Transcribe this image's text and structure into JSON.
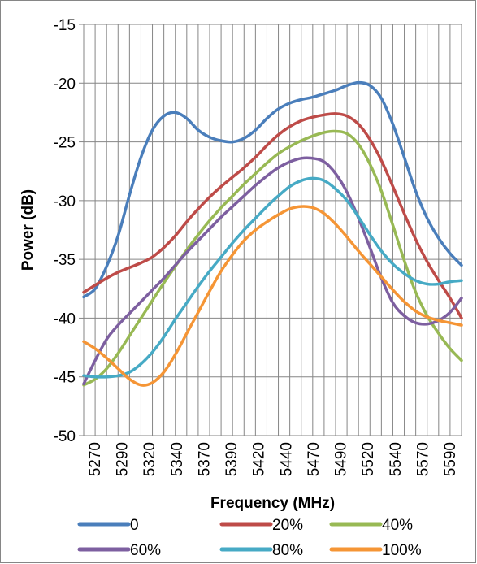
{
  "chart_data": {
    "type": "line",
    "title": "",
    "xlabel": "Frequency (MHz)",
    "ylabel": "Power (dB)",
    "xlim": [
      5270,
      5600
    ],
    "ylim": [
      -50,
      -15
    ],
    "y_ticks": [
      "-50",
      "-45",
      "-40",
      "-35",
      "-30",
      "-25",
      "-20",
      "-15"
    ],
    "x_tick_labels": [
      "5270",
      "5290",
      "5320",
      "5340",
      "5370",
      "5390",
      "5420",
      "5440",
      "5470",
      "5490",
      "5520",
      "5540",
      "5570",
      "5590"
    ],
    "grid": true,
    "legend_position": "bottom",
    "series": [
      {
        "name": "0",
        "color": "#4a7ebb",
        "points": [
          [
            5270,
            -38.2
          ],
          [
            5280,
            -37.5
          ],
          [
            5290,
            -35.6
          ],
          [
            5300,
            -33.0
          ],
          [
            5310,
            -29.5
          ],
          [
            5320,
            -26.3
          ],
          [
            5330,
            -24.0
          ],
          [
            5340,
            -22.8
          ],
          [
            5350,
            -22.5
          ],
          [
            5360,
            -23.0
          ],
          [
            5370,
            -24.0
          ],
          [
            5380,
            -24.6
          ],
          [
            5390,
            -24.9
          ],
          [
            5400,
            -25.0
          ],
          [
            5410,
            -24.7
          ],
          [
            5420,
            -24.0
          ],
          [
            5430,
            -23.0
          ],
          [
            5440,
            -22.2
          ],
          [
            5450,
            -21.7
          ],
          [
            5460,
            -21.4
          ],
          [
            5470,
            -21.2
          ],
          [
            5480,
            -20.9
          ],
          [
            5490,
            -20.6
          ],
          [
            5500,
            -20.2
          ],
          [
            5510,
            -19.95
          ],
          [
            5520,
            -20.2
          ],
          [
            5530,
            -21.3
          ],
          [
            5540,
            -23.5
          ],
          [
            5550,
            -26.3
          ],
          [
            5560,
            -29.2
          ],
          [
            5570,
            -31.5
          ],
          [
            5580,
            -33.2
          ],
          [
            5590,
            -34.5
          ],
          [
            5600,
            -35.5
          ]
        ]
      },
      {
        "name": "20%",
        "color": "#be4b48",
        "points": [
          [
            5270,
            -37.8
          ],
          [
            5280,
            -37.2
          ],
          [
            5290,
            -36.6
          ],
          [
            5300,
            -36.1
          ],
          [
            5310,
            -35.7
          ],
          [
            5320,
            -35.3
          ],
          [
            5330,
            -34.8
          ],
          [
            5340,
            -34.0
          ],
          [
            5350,
            -33.0
          ],
          [
            5360,
            -31.8
          ],
          [
            5370,
            -30.7
          ],
          [
            5380,
            -29.7
          ],
          [
            5390,
            -28.8
          ],
          [
            5400,
            -28.0
          ],
          [
            5410,
            -27.2
          ],
          [
            5420,
            -26.3
          ],
          [
            5430,
            -25.3
          ],
          [
            5440,
            -24.4
          ],
          [
            5450,
            -23.7
          ],
          [
            5460,
            -23.2
          ],
          [
            5470,
            -22.9
          ],
          [
            5480,
            -22.7
          ],
          [
            5490,
            -22.6
          ],
          [
            5500,
            -22.8
          ],
          [
            5510,
            -23.5
          ],
          [
            5520,
            -24.8
          ],
          [
            5530,
            -26.6
          ],
          [
            5540,
            -28.8
          ],
          [
            5550,
            -31.1
          ],
          [
            5560,
            -33.3
          ],
          [
            5570,
            -35.2
          ],
          [
            5580,
            -36.8
          ],
          [
            5590,
            -38.3
          ],
          [
            5600,
            -40.0
          ]
        ]
      },
      {
        "name": "40%",
        "color": "#98b954",
        "points": [
          [
            5270,
            -45.7
          ],
          [
            5280,
            -45.2
          ],
          [
            5290,
            -44.3
          ],
          [
            5300,
            -43.0
          ],
          [
            5310,
            -41.5
          ],
          [
            5320,
            -40.0
          ],
          [
            5330,
            -38.5
          ],
          [
            5340,
            -37.0
          ],
          [
            5350,
            -35.6
          ],
          [
            5360,
            -34.2
          ],
          [
            5370,
            -32.9
          ],
          [
            5380,
            -31.7
          ],
          [
            5390,
            -30.6
          ],
          [
            5400,
            -29.6
          ],
          [
            5410,
            -28.6
          ],
          [
            5420,
            -27.7
          ],
          [
            5430,
            -26.8
          ],
          [
            5440,
            -26.0
          ],
          [
            5450,
            -25.4
          ],
          [
            5460,
            -24.9
          ],
          [
            5470,
            -24.5
          ],
          [
            5480,
            -24.2
          ],
          [
            5490,
            -24.1
          ],
          [
            5500,
            -24.3
          ],
          [
            5510,
            -25.2
          ],
          [
            5520,
            -26.9
          ],
          [
            5530,
            -29.2
          ],
          [
            5540,
            -32.1
          ],
          [
            5550,
            -35.1
          ],
          [
            5560,
            -37.8
          ],
          [
            5570,
            -39.8
          ],
          [
            5580,
            -41.3
          ],
          [
            5590,
            -42.6
          ],
          [
            5600,
            -43.6
          ]
        ]
      },
      {
        "name": "60%",
        "color": "#7d5fa0",
        "points": [
          [
            5270,
            -45.6
          ],
          [
            5280,
            -43.6
          ],
          [
            5290,
            -41.8
          ],
          [
            5300,
            -40.6
          ],
          [
            5310,
            -39.6
          ],
          [
            5320,
            -38.6
          ],
          [
            5330,
            -37.6
          ],
          [
            5340,
            -36.6
          ],
          [
            5350,
            -35.5
          ],
          [
            5360,
            -34.4
          ],
          [
            5370,
            -33.4
          ],
          [
            5380,
            -32.4
          ],
          [
            5390,
            -31.4
          ],
          [
            5400,
            -30.5
          ],
          [
            5410,
            -29.6
          ],
          [
            5420,
            -28.7
          ],
          [
            5430,
            -27.9
          ],
          [
            5440,
            -27.2
          ],
          [
            5450,
            -26.7
          ],
          [
            5460,
            -26.4
          ],
          [
            5470,
            -26.4
          ],
          [
            5480,
            -26.7
          ],
          [
            5490,
            -27.7
          ],
          [
            5500,
            -29.3
          ],
          [
            5510,
            -31.5
          ],
          [
            5520,
            -34.0
          ],
          [
            5530,
            -36.6
          ],
          [
            5540,
            -38.7
          ],
          [
            5550,
            -39.8
          ],
          [
            5560,
            -40.4
          ],
          [
            5570,
            -40.5
          ],
          [
            5580,
            -40.2
          ],
          [
            5590,
            -39.5
          ],
          [
            5600,
            -38.3
          ]
        ]
      },
      {
        "name": "80%",
        "color": "#46aac5",
        "points": [
          [
            5270,
            -44.9
          ],
          [
            5280,
            -45.0
          ],
          [
            5290,
            -45.0
          ],
          [
            5300,
            -44.9
          ],
          [
            5310,
            -44.6
          ],
          [
            5320,
            -43.9
          ],
          [
            5330,
            -42.9
          ],
          [
            5340,
            -41.6
          ],
          [
            5350,
            -40.1
          ],
          [
            5360,
            -38.7
          ],
          [
            5370,
            -37.3
          ],
          [
            5380,
            -36.0
          ],
          [
            5390,
            -34.8
          ],
          [
            5400,
            -33.6
          ],
          [
            5410,
            -32.5
          ],
          [
            5420,
            -31.5
          ],
          [
            5430,
            -30.5
          ],
          [
            5440,
            -29.6
          ],
          [
            5450,
            -28.8
          ],
          [
            5460,
            -28.3
          ],
          [
            5470,
            -28.1
          ],
          [
            5480,
            -28.3
          ],
          [
            5490,
            -29.0
          ],
          [
            5500,
            -30.0
          ],
          [
            5510,
            -31.4
          ],
          [
            5520,
            -32.9
          ],
          [
            5530,
            -34.3
          ],
          [
            5540,
            -35.4
          ],
          [
            5550,
            -36.2
          ],
          [
            5560,
            -36.8
          ],
          [
            5570,
            -37.1
          ],
          [
            5580,
            -37.1
          ],
          [
            5590,
            -36.9
          ],
          [
            5600,
            -36.8
          ]
        ]
      },
      {
        "name": "100%",
        "color": "#f59535",
        "points": [
          [
            5270,
            -42.0
          ],
          [
            5280,
            -42.6
          ],
          [
            5290,
            -43.4
          ],
          [
            5300,
            -44.3
          ],
          [
            5310,
            -45.2
          ],
          [
            5320,
            -45.7
          ],
          [
            5330,
            -45.5
          ],
          [
            5340,
            -44.6
          ],
          [
            5350,
            -43.1
          ],
          [
            5360,
            -41.3
          ],
          [
            5370,
            -39.5
          ],
          [
            5380,
            -37.7
          ],
          [
            5390,
            -36.0
          ],
          [
            5400,
            -34.6
          ],
          [
            5410,
            -33.4
          ],
          [
            5420,
            -32.5
          ],
          [
            5430,
            -31.8
          ],
          [
            5440,
            -31.2
          ],
          [
            5450,
            -30.7
          ],
          [
            5460,
            -30.5
          ],
          [
            5470,
            -30.6
          ],
          [
            5480,
            -31.1
          ],
          [
            5490,
            -32.0
          ],
          [
            5500,
            -33.1
          ],
          [
            5510,
            -34.3
          ],
          [
            5520,
            -35.4
          ],
          [
            5530,
            -36.5
          ],
          [
            5540,
            -37.6
          ],
          [
            5550,
            -38.6
          ],
          [
            5560,
            -39.4
          ],
          [
            5570,
            -39.9
          ],
          [
            5580,
            -40.2
          ],
          [
            5590,
            -40.4
          ],
          [
            5600,
            -40.6
          ]
        ]
      }
    ]
  }
}
